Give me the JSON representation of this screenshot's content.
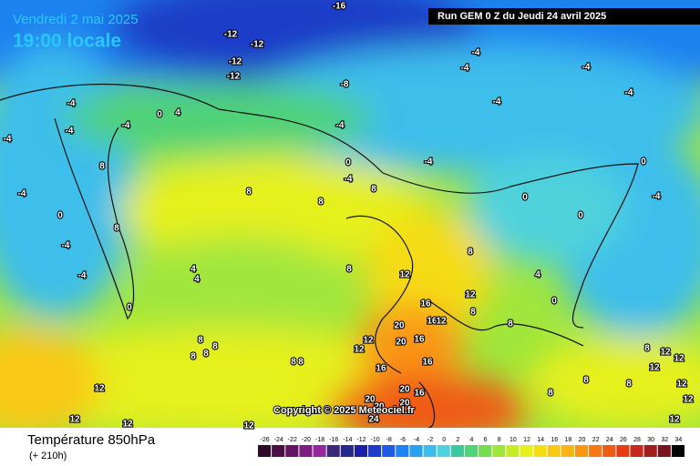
{
  "header": {
    "date": "Vendredi 2 mai 2025",
    "time": "19:00 locale",
    "run": "Run GEM 0 Z du Jeudi 24 avril 2025"
  },
  "map": {
    "contour_labels": [
      -16,
      -12,
      -12,
      -12,
      -12,
      -8,
      -4,
      -4,
      -4,
      -4,
      -4,
      -4,
      -4,
      -4,
      -4,
      0,
      4,
      -4,
      0,
      -4,
      -4,
      8,
      -4,
      0,
      -4,
      -4,
      8,
      8,
      8,
      8,
      0,
      0,
      -4,
      0,
      4,
      4,
      0,
      8,
      8,
      12,
      12,
      16,
      8,
      4,
      0,
      8,
      16,
      12,
      20,
      20,
      16,
      12,
      12,
      8,
      8,
      8,
      8,
      8,
      8,
      16,
      16,
      12,
      12,
      12,
      12,
      20,
      20,
      16,
      20,
      20,
      24,
      8,
      8,
      8,
      12,
      12,
      12,
      8,
      12,
      12,
      12
    ]
  },
  "copyright": "Copyright © 2025 Meteociel.fr",
  "footer": {
    "title": "Température 850hPa",
    "subtitle": "(+ 210h)"
  },
  "legend": {
    "values": [
      -26,
      -24,
      -22,
      -20,
      -18,
      -16,
      -14,
      -12,
      -10,
      -8,
      -6,
      -4,
      -2,
      0,
      2,
      4,
      6,
      8,
      10,
      12,
      14,
      16,
      18,
      20,
      22,
      24,
      26,
      28,
      30,
      32,
      34
    ],
    "colors": [
      "#2d0a28",
      "#4b0f46",
      "#641464",
      "#7d1e82",
      "#96289b",
      "#3c2878",
      "#28288c",
      "#1e1eaa",
      "#1e3cc8",
      "#1e5ae6",
      "#1e82f0",
      "#28a0f0",
      "#3cbeeb",
      "#50d2dc",
      "#3cc8a0",
      "#50d278",
      "#78dc50",
      "#a0e63c",
      "#c8eb28",
      "#e6f01e",
      "#f5dc14",
      "#fac814",
      "#fab414",
      "#fa9614",
      "#f57814",
      "#f05a14",
      "#e63c14",
      "#c8281e",
      "#a01e1e",
      "#78141e",
      "#000000"
    ]
  }
}
